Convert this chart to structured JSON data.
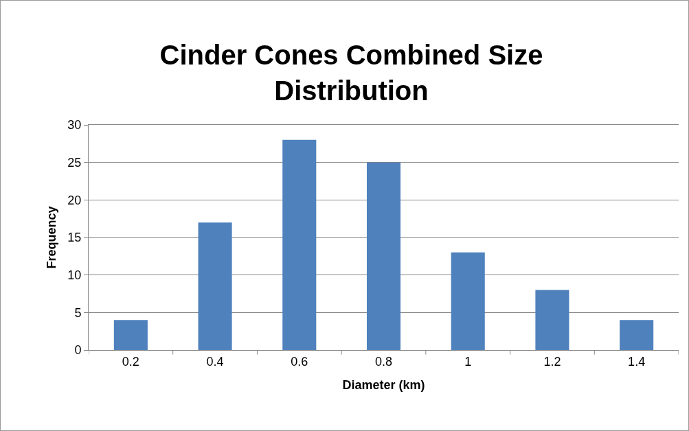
{
  "chart_data": {
    "type": "bar",
    "title": "Cinder Cones Combined Size Distribution",
    "xlabel": "Diameter (km)",
    "ylabel": "Frequency",
    "categories": [
      "0.2",
      "0.4",
      "0.6",
      "0.8",
      "1",
      "1.2",
      "1.4"
    ],
    "values": [
      4,
      17,
      28,
      25,
      13,
      8,
      4
    ],
    "color": "#4f81bd",
    "ylim": [
      0,
      30
    ],
    "yticks": [
      0,
      5,
      10,
      15,
      20,
      25,
      30
    ],
    "grid": "y"
  }
}
